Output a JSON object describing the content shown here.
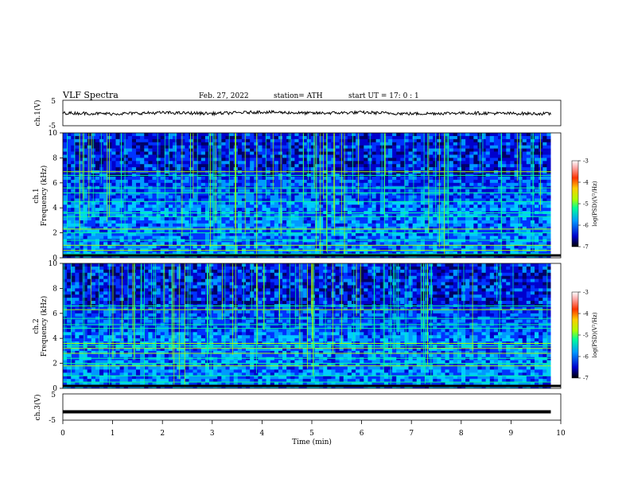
{
  "header": {
    "title": "VLF  Spectra",
    "date": "Feb. 27, 2022",
    "station": "station= ATH",
    "start": "start  UT  =   17: 0  : 1"
  },
  "colorbar": {
    "label": "log(PSD)(V²/Hz)",
    "ticks": [
      "-3",
      "-4",
      "-5",
      "-6",
      "-7"
    ],
    "colors": [
      "#000000",
      "#0000cc",
      "#0099ff",
      "#00ff99",
      "#aaff00",
      "#ffcc00",
      "#ff3300",
      "#ffaaaa",
      "#ffffff"
    ]
  },
  "chart_data": [
    {
      "type": "line",
      "name": "ch1-voltage",
      "ylabel": "ch.1(V)",
      "ylim": [
        -5,
        5
      ],
      "yticks": [
        "5",
        "-5"
      ],
      "xlim": [
        0,
        10
      ],
      "x": [
        0,
        1,
        2,
        3,
        4,
        5,
        6,
        7,
        8,
        9,
        9.8
      ],
      "values": [
        0.0,
        -0.3,
        0.1,
        -0.2,
        0.4,
        -0.1,
        0.2,
        -0.3,
        0.0,
        -0.2,
        -0.3
      ]
    },
    {
      "type": "heatmap",
      "name": "ch1-spectrogram",
      "ylabel_top": "ch.1",
      "ylabel": "Frequency  (kHz)",
      "ylim": [
        0,
        10
      ],
      "yticks": [
        "0",
        "2",
        "4",
        "6",
        "8",
        "10"
      ],
      "xlim": [
        0,
        10
      ],
      "data_end_min": 9.8,
      "zlim": [
        -7,
        -3
      ],
      "lines_khz": [
        0.3,
        0.6,
        1.0,
        1.4,
        2.0,
        2.3,
        3.3,
        3.6,
        4.5,
        5.2,
        5.6,
        6.6,
        6.9
      ]
    },
    {
      "type": "heatmap",
      "name": "ch2-spectrogram",
      "ylabel_top": "ch.2",
      "ylabel": "Frequency  (kHz)",
      "ylim": [
        0,
        10
      ],
      "yticks": [
        "0",
        "2",
        "4",
        "6",
        "8",
        "10"
      ],
      "xlim": [
        0,
        10
      ],
      "data_end_min": 9.8,
      "zlim": [
        -7,
        -3
      ],
      "lines_khz": [
        0.5,
        1.0,
        1.8,
        2.0,
        2.4,
        2.8,
        3.2,
        3.4,
        3.6,
        4.8,
        5.1,
        5.6,
        6.3,
        6.6
      ]
    },
    {
      "type": "line",
      "name": "ch3-voltage",
      "ylabel": "ch.3(V)",
      "ylim": [
        -5,
        5
      ],
      "yticks": [
        "5",
        "-5"
      ],
      "xlim": [
        0,
        10
      ],
      "x": [
        0,
        9.8
      ],
      "values": [
        -1.8,
        -1.8
      ]
    }
  ],
  "xaxis": {
    "label": "Time  (min)",
    "ticks": [
      "0",
      "1",
      "2",
      "3",
      "4",
      "5",
      "6",
      "7",
      "8",
      "9",
      "10"
    ]
  }
}
